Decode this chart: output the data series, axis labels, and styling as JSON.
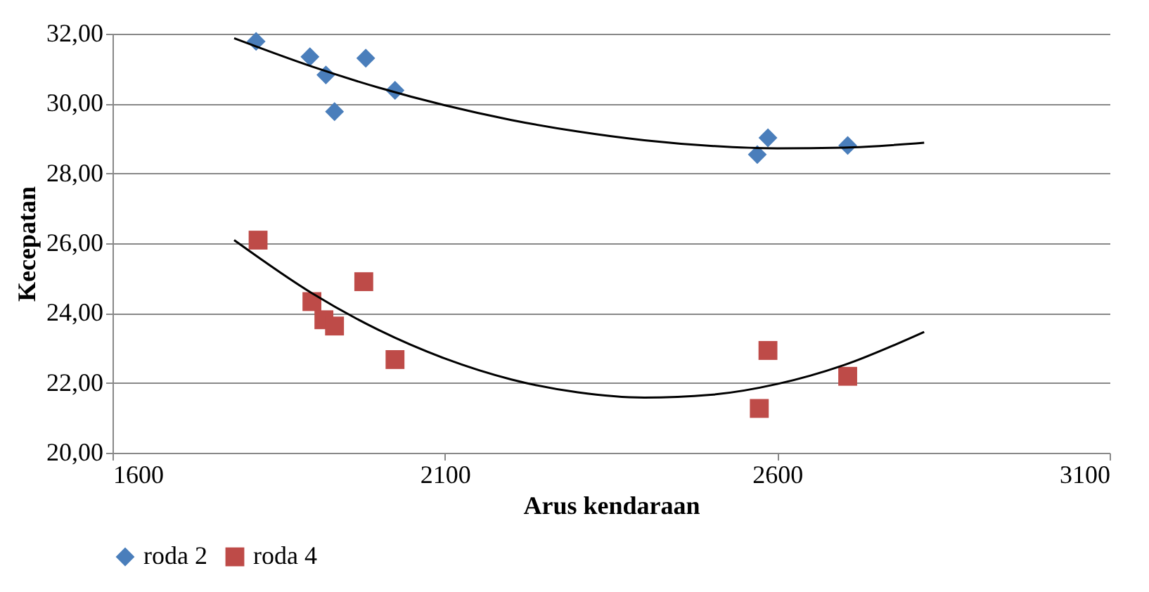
{
  "chart_data": {
    "type": "scatter",
    "xlabel": "Arus kendaraan",
    "ylabel": "Kecepatan",
    "xlim": [
      1600,
      3100
    ],
    "xticks": [
      1600,
      2100,
      2600,
      3100
    ],
    "ylim": [
      20,
      32
    ],
    "yticks": [
      {
        "value": 20,
        "label": "20,00"
      },
      {
        "value": 22,
        "label": "22,00"
      },
      {
        "value": 24,
        "label": "24,00"
      },
      {
        "value": 26,
        "label": "26,00"
      },
      {
        "value": 28,
        "label": "28,00"
      },
      {
        "value": 30,
        "label": "30,00"
      },
      {
        "value": 32,
        "label": "32,00"
      }
    ],
    "grid": "y",
    "legend": "bottom",
    "series": [
      {
        "name": "roda 2",
        "marker": "diamond",
        "color": "#4a7ebb",
        "x": [
          1816,
          1897,
          1921,
          1934,
          1981,
          2025,
          2570,
          2586,
          2706
        ],
        "values": [
          31.78,
          31.34,
          30.82,
          29.77,
          31.3,
          30.38,
          28.54,
          29.02,
          28.8
        ]
      },
      {
        "name": "roda 4",
        "marker": "square",
        "color": "#be4b48",
        "x": [
          1819,
          1900,
          1918,
          1934,
          1978,
          2025,
          2573,
          2586,
          2706
        ],
        "values": [
          26.09,
          24.33,
          23.81,
          23.63,
          24.9,
          22.67,
          21.27,
          22.93,
          22.19
        ]
      },
      {
        "type": "line",
        "color": "#000000",
        "x": [
          1783,
          1900,
          2000,
          2100,
          2200,
          2300,
          2400,
          2500,
          2600,
          2700,
          2821
        ],
        "values": [
          31.87,
          31.06,
          30.46,
          29.95,
          29.53,
          29.2,
          28.95,
          28.79,
          28.72,
          28.74,
          28.88
        ]
      },
      {
        "type": "line",
        "color": "#000000",
        "x": [
          1783,
          1900,
          2000,
          2100,
          2200,
          2300,
          2400,
          2500,
          2600,
          2700,
          2821
        ],
        "values": [
          26.09,
          24.57,
          23.52,
          22.7,
          22.1,
          21.73,
          21.58,
          21.66,
          21.97,
          22.51,
          23.46
        ]
      }
    ]
  }
}
